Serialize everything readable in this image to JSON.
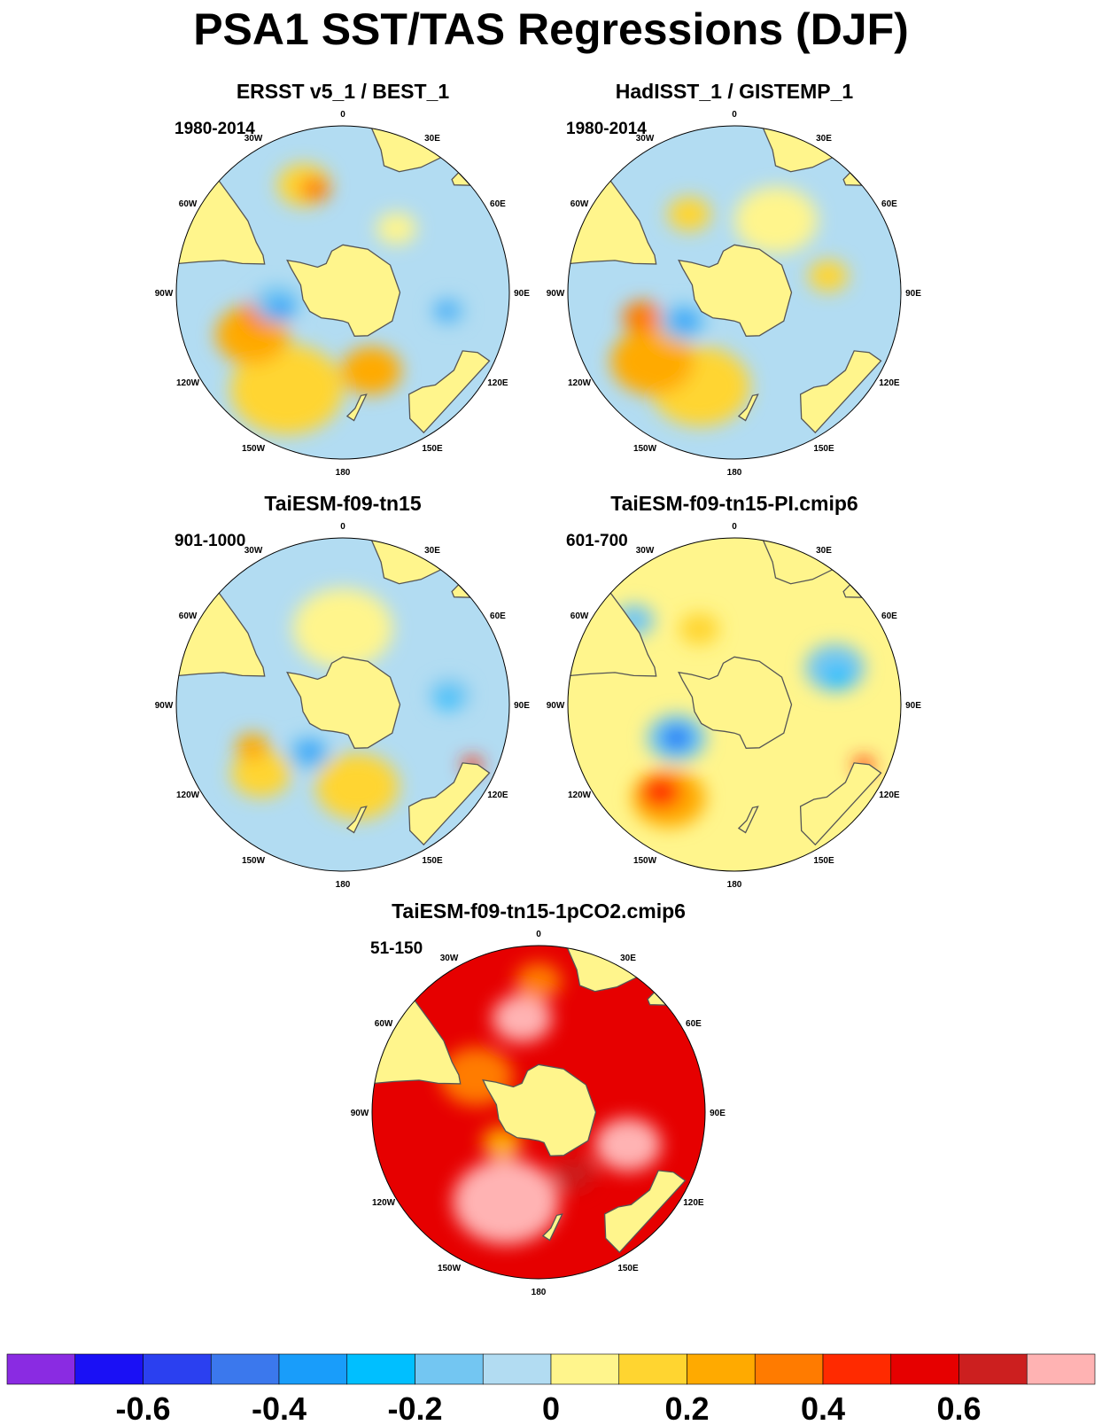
{
  "title": "PSA1 SST/TAS Regressions (DJF)",
  "lon_labels": [
    "0",
    "30E",
    "60E",
    "90E",
    "120E",
    "150E",
    "180",
    "150W",
    "120W",
    "90W",
    "60W",
    "30W"
  ],
  "panels": [
    {
      "title": "ERSST v5_1 / BEST_1",
      "period": "1980-2014",
      "field": {
        "base": "#b2dcf2",
        "blobs": [
          {
            "lon": 210,
            "lat": -43,
            "r": 0.34,
            "c": "#ffd530"
          },
          {
            "lon": 245,
            "lat": -48,
            "r": 0.22,
            "c": "#ffaa00"
          },
          {
            "lon": 255,
            "lat": -55,
            "r": 0.12,
            "c": "#ff7b00"
          },
          {
            "lon": 160,
            "lat": -55,
            "r": 0.18,
            "c": "#ffaa00"
          },
          {
            "lon": 340,
            "lat": -42,
            "r": 0.16,
            "c": "#ffd530"
          },
          {
            "lon": 345,
            "lat": -45,
            "r": 0.09,
            "c": "#ff7b00"
          },
          {
            "lon": 40,
            "lat": -55,
            "r": 0.12,
            "c": "#fff58c"
          },
          {
            "lon": 100,
            "lat": -45,
            "r": 0.1,
            "c": "#73c6f2"
          },
          {
            "lon": 100,
            "lat": -46,
            "r": 0.05,
            "c": "#199dfa"
          },
          {
            "lon": 260,
            "lat": -62,
            "r": 0.14,
            "c": "#73c6f2"
          },
          {
            "lon": 255,
            "lat": -63,
            "r": 0.07,
            "c": "#199dfa"
          }
        ]
      }
    },
    {
      "title": "HadISST_1 / GISTEMP_1",
      "period": "1980-2014",
      "field": {
        "base": "#b2dcf2",
        "blobs": [
          {
            "lon": 200,
            "lat": -48,
            "r": 0.3,
            "c": "#ffd530"
          },
          {
            "lon": 230,
            "lat": -45,
            "r": 0.25,
            "c": "#ffaa00"
          },
          {
            "lon": 255,
            "lat": -50,
            "r": 0.12,
            "c": "#ff7b00"
          },
          {
            "lon": 30,
            "lat": -55,
            "r": 0.25,
            "c": "#fff58c"
          },
          {
            "lon": 80,
            "lat": -50,
            "r": 0.12,
            "c": "#ffd530"
          },
          {
            "lon": 330,
            "lat": -52,
            "r": 0.13,
            "c": "#ffd530"
          },
          {
            "lon": 240,
            "lat": -65,
            "r": 0.14,
            "c": "#73c6f2"
          },
          {
            "lon": 240,
            "lat": -66,
            "r": 0.07,
            "c": "#199dfa"
          }
        ]
      }
    },
    {
      "title": "TaiESM-f09-tn15",
      "period": "901-1000",
      "field": {
        "base": "#b2dcf2",
        "blobs": [
          {
            "lon": 0,
            "lat": -58,
            "r": 0.3,
            "c": "#fff58c"
          },
          {
            "lon": 170,
            "lat": -55,
            "r": 0.25,
            "c": "#ffd530"
          },
          {
            "lon": 230,
            "lat": -45,
            "r": 0.18,
            "c": "#ffd530"
          },
          {
            "lon": 245,
            "lat": -48,
            "r": 0.1,
            "c": "#ffaa00"
          },
          {
            "lon": 85,
            "lat": -45,
            "r": 0.12,
            "c": "#73c6f2"
          },
          {
            "lon": 88,
            "lat": -46,
            "r": 0.06,
            "c": "#00bfff"
          },
          {
            "lon": 215,
            "lat": -65,
            "r": 0.13,
            "c": "#73c6f2"
          },
          {
            "lon": 215,
            "lat": -66,
            "r": 0.07,
            "c": "#199dfa"
          },
          {
            "lon": 115,
            "lat": -30,
            "r": 0.06,
            "c": "#ff2a00"
          }
        ]
      }
    },
    {
      "title": "TaiESM-f09-tn15-PI.cmip6",
      "period": "601-700",
      "field": {
        "base": "#fff58c",
        "blobs": [
          {
            "lon": 70,
            "lat": -45,
            "r": 0.18,
            "c": "#73c6f2"
          },
          {
            "lon": 75,
            "lat": -45,
            "r": 0.08,
            "c": "#00bfff"
          },
          {
            "lon": 310,
            "lat": -35,
            "r": 0.12,
            "c": "#73c6f2"
          },
          {
            "lon": 240,
            "lat": -62,
            "r": 0.18,
            "c": "#73c6f2"
          },
          {
            "lon": 240,
            "lat": -62,
            "r": 0.1,
            "c": "#199dfa"
          },
          {
            "lon": 240,
            "lat": -62,
            "r": 0.05,
            "c": "#2b40f0"
          },
          {
            "lon": 215,
            "lat": -42,
            "r": 0.22,
            "c": "#ffaa00"
          },
          {
            "lon": 220,
            "lat": -42,
            "r": 0.12,
            "c": "#ff2a00"
          },
          {
            "lon": 335,
            "lat": -55,
            "r": 0.12,
            "c": "#ffd530"
          },
          {
            "lon": 115,
            "lat": -30,
            "r": 0.06,
            "c": "#ff2a00"
          }
        ]
      }
    },
    {
      "title": "TaiESM-f09-tn15-1pCO2.cmip6",
      "period": "51-150",
      "field": {
        "base": "#e60000",
        "blobs": [
          {
            "lon": 200,
            "lat": -50,
            "r": 0.32,
            "c": "#ffb3b3"
          },
          {
            "lon": 110,
            "lat": -50,
            "r": 0.2,
            "c": "#ffb3b3"
          },
          {
            "lon": 350,
            "lat": -50,
            "r": 0.18,
            "c": "#ffb3b3"
          },
          {
            "lon": 300,
            "lat": -60,
            "r": 0.22,
            "c": "#ff7b00"
          },
          {
            "lon": 0,
            "lat": -35,
            "r": 0.14,
            "c": "#ff7b00"
          },
          {
            "lon": 230,
            "lat": -70,
            "r": 0.12,
            "c": "#ffaa00"
          },
          {
            "lon": 150,
            "lat": -60,
            "r": 0.12,
            "c": "#cc1f1f"
          }
        ]
      }
    }
  ],
  "colorbar": {
    "colors": [
      "#8a2be2",
      "#1a10f5",
      "#2b40f0",
      "#3b78ed",
      "#199dfa",
      "#00bfff",
      "#73c6f2",
      "#b2dcf2",
      "#fff58c",
      "#ffd530",
      "#ffaa00",
      "#ff7b00",
      "#ff2a00",
      "#e60000",
      "#cc1f1f",
      "#ffb3b3"
    ],
    "labels": [
      "-0.6",
      "-0.4",
      "-0.2",
      "0",
      "0.2",
      "0.4",
      "0.6"
    ]
  },
  "land_color": "#fff58c"
}
